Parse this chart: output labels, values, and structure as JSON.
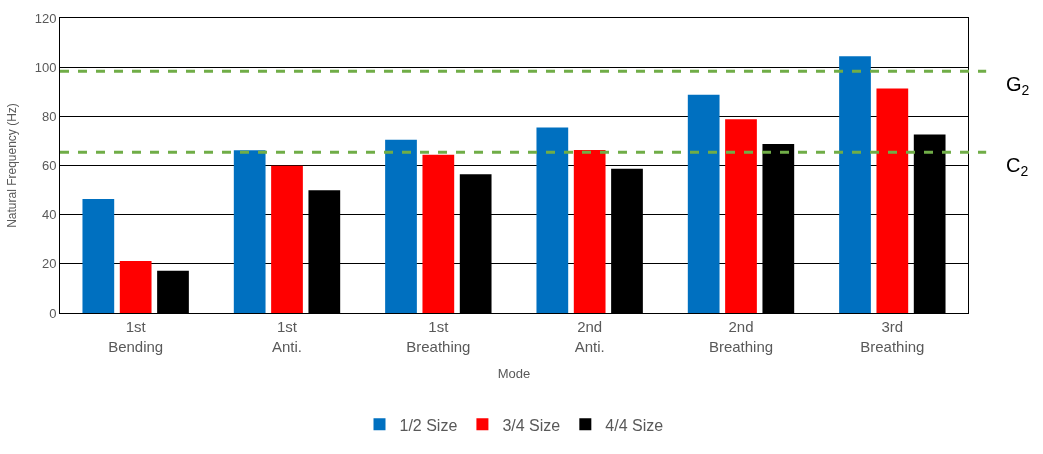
{
  "chart_data": {
    "type": "bar",
    "xlabel": "Mode",
    "ylabel": "Natural Frequency (Hz)",
    "categories": [
      "1st\nBending",
      "1st\nAnti.",
      "1st\nBreathing",
      "2nd\nAnti.",
      "2nd\nBreathing",
      "3rd\nBreathing"
    ],
    "series": [
      {
        "name": "1/2 Size",
        "color": "#0070c0",
        "values": [
          46.4,
          66.2,
          70.5,
          75.5,
          88.8,
          104.4
        ]
      },
      {
        "name": "3/4 Size",
        "color": "#ff0000",
        "values": [
          21.2,
          59.9,
          64.4,
          66.3,
          78.8,
          91.3
        ]
      },
      {
        "name": "4/4 Size",
        "color": "#000000",
        "values": [
          17.2,
          49.9,
          56.4,
          58.7,
          68.7,
          72.6
        ]
      }
    ],
    "ylim": [
      0,
      120
    ],
    "yticks": [
      0,
      20,
      40,
      60,
      80,
      100,
      120
    ],
    "grid": "y",
    "legend": "bottom",
    "ref_lines": [
      {
        "axis": "y",
        "value": 98.3,
        "label": "G$_{2}$",
        "color": "#70ad47",
        "line_style": "dashed"
      },
      {
        "axis": "y",
        "value": 65.4,
        "label": "C$_{2}$",
        "color": "#70ad47",
        "line_style": "dashed"
      }
    ]
  }
}
